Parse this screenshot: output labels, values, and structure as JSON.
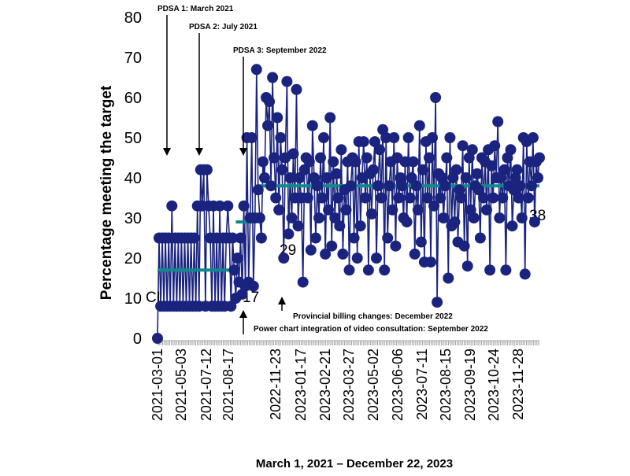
{
  "chart_data": {
    "type": "line",
    "title": "",
    "ylabel": "Percentage meeting the target",
    "xlabel": "March 1, 2021 – December 22, 2023",
    "ylim": [
      0,
      80
    ],
    "y_ticks": [
      "0",
      "10",
      "20",
      "30",
      "40",
      "50",
      "60",
      "70",
      "80"
    ],
    "x_ticks": [
      "2021-03-01",
      "2021-05-03",
      "2021-07-12",
      "2021-08-17",
      "2022-11-23",
      "2023-01-17",
      "2023-02-21",
      "2023-03-27",
      "2023-05-02",
      "2023-06-06",
      "2023-07-11",
      "2023-08-15",
      "2023-09-19",
      "2023-10-24",
      "2023-11-28"
    ],
    "n_points": 240,
    "series": [
      {
        "name": "Percentage meeting the target",
        "color": "#1a237e",
        "values": [
          0,
          25,
          8,
          25,
          8,
          25,
          8,
          25,
          8,
          33,
          8,
          25,
          8,
          25,
          8,
          25,
          8,
          25,
          8,
          25,
          8,
          25,
          8,
          25,
          8,
          33,
          8,
          42,
          33,
          42,
          8,
          42,
          33,
          25,
          8,
          33,
          8,
          25,
          8,
          33,
          8,
          25,
          8,
          25,
          33,
          25,
          8,
          25,
          17,
          10,
          20,
          14,
          25,
          11,
          33,
          13,
          50,
          14,
          30,
          50,
          13,
          30,
          67,
          37,
          30,
          25,
          44,
          40,
          60,
          53,
          59,
          38,
          65,
          45,
          35,
          55,
          32,
          50,
          42,
          20,
          45,
          64,
          26,
          40,
          30,
          46,
          35,
          62,
          28,
          40,
          35,
          14,
          42,
          45,
          35,
          44,
          22,
          53,
          40,
          25,
          38,
          30,
          45,
          35,
          50,
          21,
          40,
          32,
          55,
          23,
          44,
          30,
          41,
          35,
          28,
          47,
          21,
          37,
          32,
          44,
          17,
          38,
          45,
          25,
          44,
          20,
          49,
          28,
          40,
          49,
          35,
          45,
          17,
          41,
          31,
          42,
          49,
          20,
          38,
          47,
          35,
          52,
          17,
          50,
          25,
          38,
          44,
          32,
          50,
          23,
          45,
          35,
          40,
          38,
          30,
          44,
          29,
          50,
          35,
          40,
          44,
          21,
          38,
          32,
          53,
          24,
          42,
          19,
          49,
          35,
          45,
          19,
          50,
          33,
          60,
          9,
          41,
          35,
          40,
          30,
          38,
          45,
          15,
          50,
          28,
          40,
          29,
          42,
          24,
          37,
          35,
          48,
          23,
          40,
          18,
          45,
          32,
          47,
          30,
          38,
          41,
          37,
          25,
          45,
          35,
          44,
          32,
          47,
          17,
          43,
          35,
          48,
          40,
          54,
          30,
          40,
          35,
          42,
          17,
          45,
          38,
          47,
          28,
          37,
          40,
          42,
          35,
          38,
          30,
          50,
          16,
          49,
          35,
          44,
          38,
          50,
          29,
          44,
          40,
          45
        ]
      },
      {
        "name": "Centre line",
        "color": "#0e8a8f",
        "segments": [
          {
            "label": "CL",
            "from": 0,
            "to": 47,
            "value": 17
          },
          {
            "label": "29",
            "from": 49,
            "to": 61,
            "value": 29
          },
          {
            "label": "38",
            "from": 63,
            "to": 239,
            "value": 38
          }
        ]
      }
    ],
    "annotations": {
      "top": [
        {
          "text": "PDSA 1: March 2021",
          "index": 4
        },
        {
          "text": "PDSA 2: July 2021",
          "index": 20
        },
        {
          "text": "PDSA 3: September 2022",
          "index": 44
        }
      ],
      "bottom": [
        {
          "text": "Provincial billing changes: December 2022",
          "index": 60
        },
        {
          "text": "Power chart integration of video consultation: September 2022",
          "index": 44
        }
      ]
    }
  }
}
